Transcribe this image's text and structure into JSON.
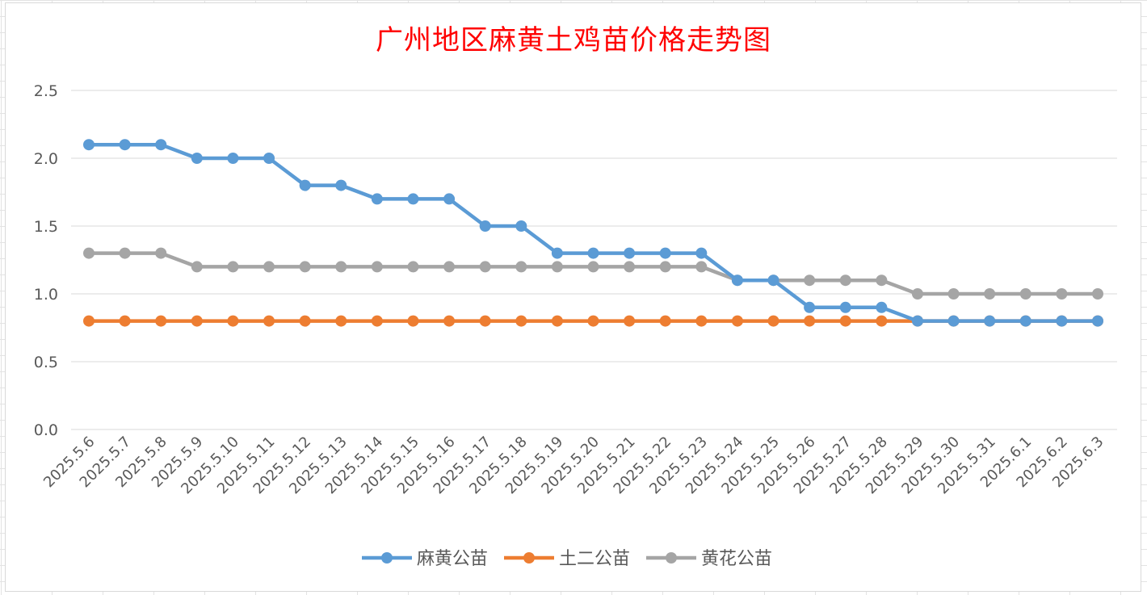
{
  "chart_data": {
    "type": "line",
    "title": "广州地区麻黄土鸡苗价格走势图",
    "xlabel": "",
    "ylabel": "",
    "ylim": [
      0,
      2.5
    ],
    "yticks": [
      "0.0",
      "0.5",
      "1.0",
      "1.5",
      "2.0",
      "2.5"
    ],
    "grid": "horizontal",
    "legend_position": "bottom",
    "categories": [
      "2025.5.6",
      "2025.5.7",
      "2025.5.8",
      "2025.5.9",
      "2025.5.10",
      "2025.5.11",
      "2025.5.12",
      "2025.5.13",
      "2025.5.14",
      "2025.5.15",
      "2025.5.16",
      "2025.5.17",
      "2025.5.18",
      "2025.5.19",
      "2025.5.20",
      "2025.5.21",
      "2025.5.22",
      "2025.5.23",
      "2025.5.24",
      "2025.5.25",
      "2025.5.26",
      "2025.5.27",
      "2025.5.28",
      "2025.5.29",
      "2025.5.30",
      "2025.5.31",
      "2025.6.1",
      "2025.6.2",
      "2025.6.3"
    ],
    "series": [
      {
        "name": "麻黄公苗",
        "color": "#5b9bd5",
        "values": [
          2.1,
          2.1,
          2.1,
          2.0,
          2.0,
          2.0,
          1.8,
          1.8,
          1.7,
          1.7,
          1.7,
          1.5,
          1.5,
          1.3,
          1.3,
          1.3,
          1.3,
          1.3,
          1.1,
          1.1,
          0.9,
          0.9,
          0.9,
          0.8,
          0.8,
          0.8,
          0.8,
          0.8,
          0.8
        ]
      },
      {
        "name": "土二公苗",
        "color": "#ed7d31",
        "values": [
          0.8,
          0.8,
          0.8,
          0.8,
          0.8,
          0.8,
          0.8,
          0.8,
          0.8,
          0.8,
          0.8,
          0.8,
          0.8,
          0.8,
          0.8,
          0.8,
          0.8,
          0.8,
          0.8,
          0.8,
          0.8,
          0.8,
          0.8,
          0.8,
          0.8,
          0.8,
          0.8,
          0.8,
          0.8
        ]
      },
      {
        "name": "黄花公苗",
        "color": "#a5a5a5",
        "values": [
          1.3,
          1.3,
          1.3,
          1.2,
          1.2,
          1.2,
          1.2,
          1.2,
          1.2,
          1.2,
          1.2,
          1.2,
          1.2,
          1.2,
          1.2,
          1.2,
          1.2,
          1.2,
          1.1,
          1.1,
          1.1,
          1.1,
          1.1,
          1.0,
          1.0,
          1.0,
          1.0,
          1.0,
          1.0
        ]
      }
    ]
  }
}
